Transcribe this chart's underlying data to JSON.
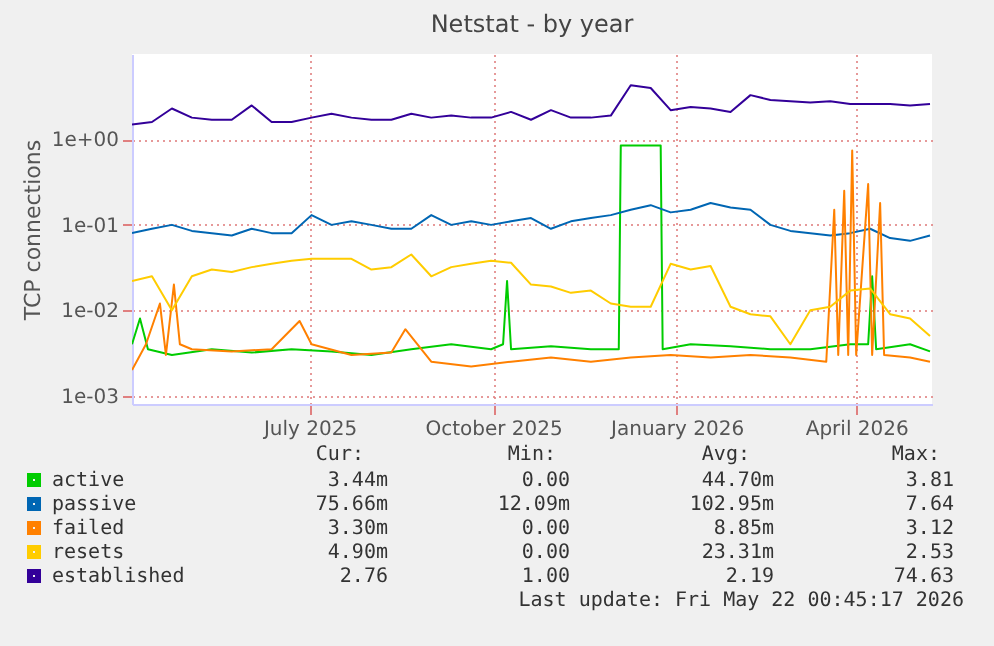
{
  "chart_data": {
    "type": "line",
    "title": "Netstat - by year",
    "ylabel": "TCP connections",
    "log": "y",
    "grid": true,
    "legend": "bottom left",
    "marker": "none",
    "line_style": "solid",
    "xlim": [
      "2025-04-03",
      "2026-05-09"
    ],
    "xticks": [
      {
        "value": "2025-07-01",
        "label": "July 2025"
      },
      {
        "value": "2025-10-01",
        "label": "October 2025"
      },
      {
        "value": "2026-01-01",
        "label": "January 2026"
      },
      {
        "value": "2026-04-01",
        "label": "April 2026"
      }
    ],
    "ylim": [
      0.0008,
      10
    ],
    "yticks": [
      {
        "value": 0.001,
        "label": "1e-03"
      },
      {
        "value": 0.01,
        "label": "1e-02"
      },
      {
        "value": 0.1,
        "label": "1e-01"
      },
      {
        "value": 1,
        "label": "1e+00"
      }
    ],
    "x": [
      "2025-04-03",
      "2025-04-13",
      "2025-04-23",
      "2025-05-03",
      "2025-05-13",
      "2025-05-23",
      "2025-06-02",
      "2025-06-12",
      "2025-06-22",
      "2025-07-02",
      "2025-07-12",
      "2025-07-22",
      "2025-08-01",
      "2025-08-11",
      "2025-08-21",
      "2025-08-31",
      "2025-09-10",
      "2025-09-20",
      "2025-09-30",
      "2025-10-10",
      "2025-10-20",
      "2025-10-30",
      "2025-11-09",
      "2025-11-19",
      "2025-11-29",
      "2025-12-09",
      "2025-12-19",
      "2025-12-29",
      "2026-01-08",
      "2026-01-18",
      "2026-01-28",
      "2026-02-07",
      "2026-02-17",
      "2026-02-27",
      "2026-03-09",
      "2026-03-19",
      "2026-03-29",
      "2026-04-08",
      "2026-04-18",
      "2026-04-28",
      "2026-05-08"
    ],
    "series": [
      {
        "name": "active",
        "color": "#00cc00",
        "x": [
          "2025-04-03",
          "2025-04-07",
          "2025-04-11",
          "2025-04-23",
          "2025-05-13",
          "2025-06-02",
          "2025-06-22",
          "2025-07-12",
          "2025-08-01",
          "2025-08-21",
          "2025-09-10",
          "2025-09-30",
          "2025-10-06",
          "2025-10-08",
          "2025-10-10",
          "2025-10-30",
          "2025-11-19",
          "2025-12-03",
          "2025-12-04",
          "2025-12-24",
          "2025-12-25",
          "2026-01-08",
          "2026-01-28",
          "2026-02-17",
          "2026-03-09",
          "2026-03-29",
          "2026-04-07",
          "2026-04-09",
          "2026-04-11",
          "2026-04-28",
          "2026-05-08"
        ],
        "values": [
          0.004,
          0.008,
          0.0035,
          0.003,
          0.0035,
          0.0032,
          0.0035,
          0.0033,
          0.003,
          0.0035,
          0.004,
          0.0035,
          0.004,
          0.022,
          0.0035,
          0.0038,
          0.0035,
          0.0035,
          0.85,
          0.85,
          0.0035,
          0.004,
          0.0038,
          0.0035,
          0.0035,
          0.004,
          0.004,
          0.025,
          0.0035,
          0.004,
          0.0033
        ]
      },
      {
        "name": "passive",
        "color": "#0066b3",
        "values": [
          0.08,
          0.09,
          0.1,
          0.085,
          0.08,
          0.075,
          0.09,
          0.08,
          0.08,
          0.13,
          0.1,
          0.11,
          0.1,
          0.09,
          0.09,
          0.13,
          0.1,
          0.11,
          0.1,
          0.11,
          0.12,
          0.09,
          0.11,
          0.12,
          0.13,
          0.15,
          0.17,
          0.14,
          0.15,
          0.18,
          0.16,
          0.15,
          0.1,
          0.085,
          0.08,
          0.075,
          0.08,
          0.09,
          0.07,
          0.065,
          0.075
        ]
      },
      {
        "name": "failed",
        "color": "#ff8000",
        "x": [
          "2025-04-03",
          "2025-04-10",
          "2025-04-17",
          "2025-04-20",
          "2025-04-24",
          "2025-04-27",
          "2025-05-03",
          "2025-05-23",
          "2025-06-12",
          "2025-06-26",
          "2025-07-02",
          "2025-07-22",
          "2025-08-11",
          "2025-08-18",
          "2025-08-31",
          "2025-09-20",
          "2025-10-10",
          "2025-10-30",
          "2025-11-19",
          "2025-12-09",
          "2025-12-29",
          "2026-01-18",
          "2026-02-07",
          "2026-02-27",
          "2026-03-17",
          "2026-03-21",
          "2026-03-23",
          "2026-03-26",
          "2026-03-28",
          "2026-03-30",
          "2026-04-01",
          "2026-04-07",
          "2026-04-09",
          "2026-04-13",
          "2026-04-15",
          "2026-04-28",
          "2026-05-08"
        ],
        "values": [
          0.002,
          0.004,
          0.012,
          0.003,
          0.02,
          0.004,
          0.0035,
          0.0033,
          0.0035,
          0.0075,
          0.004,
          0.003,
          0.0032,
          0.006,
          0.0025,
          0.0022,
          0.0025,
          0.0028,
          0.0025,
          0.0028,
          0.003,
          0.0028,
          0.003,
          0.0028,
          0.0025,
          0.15,
          0.003,
          0.25,
          0.003,
          0.74,
          0.003,
          0.3,
          0.003,
          0.18,
          0.003,
          0.0028,
          0.0025
        ]
      },
      {
        "name": "resets",
        "color": "#ffcc00",
        "values": [
          0.022,
          0.025,
          0.01,
          0.025,
          0.03,
          0.028,
          0.032,
          0.035,
          0.038,
          0.04,
          0.04,
          0.04,
          0.03,
          0.032,
          0.045,
          0.025,
          0.032,
          0.035,
          0.038,
          0.036,
          0.02,
          0.019,
          0.016,
          0.017,
          0.012,
          0.011,
          0.011,
          0.035,
          0.03,
          0.033,
          0.011,
          0.009,
          0.0085,
          0.004,
          0.01,
          0.011,
          0.017,
          0.018,
          0.009,
          0.008,
          0.005
        ]
      },
      {
        "name": "established",
        "color": "#330099",
        "values": [
          1.5,
          1.6,
          2.3,
          1.8,
          1.7,
          1.7,
          2.5,
          1.6,
          1.6,
          1.8,
          2.0,
          1.8,
          1.7,
          1.7,
          2.0,
          1.8,
          1.9,
          1.8,
          1.8,
          2.1,
          1.7,
          2.2,
          1.8,
          1.8,
          1.9,
          4.3,
          4.0,
          2.2,
          2.4,
          2.3,
          2.1,
          3.3,
          2.9,
          2.8,
          2.7,
          2.8,
          2.6,
          2.6,
          2.6,
          2.5,
          2.6
        ]
      }
    ],
    "annotations": [
      "Cur:",
      "Min:",
      "Avg:",
      "Max:",
      "3.44m",
      "0.00",
      "44.70m",
      "3.81",
      "75.66m",
      "12.09m",
      "102.95m",
      "7.64",
      "3.30m",
      "0.00",
      "8.85m",
      "3.12",
      "4.90m",
      "0.00",
      "23.31m",
      "2.53",
      "2.76",
      "1.00",
      "2.19",
      "74.63",
      "Last update: Fri May 22 00:45:17 2026"
    ]
  }
}
